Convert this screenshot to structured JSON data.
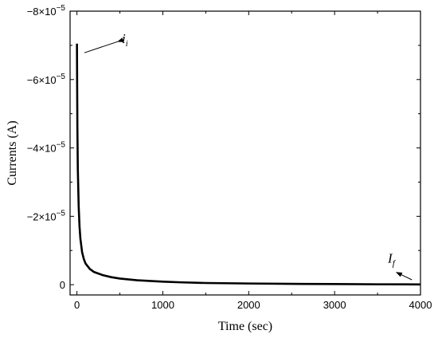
{
  "chart_data": {
    "type": "line",
    "title": "",
    "xlabel": "Time (sec)",
    "ylabel": "Currents (A)",
    "xlim": [
      -80,
      4000
    ],
    "ylim": [
      0.3,
      -8
    ],
    "y_unit_exponent": -5,
    "y_axis_inverted": true,
    "x_ticks": [
      {
        "value": 0,
        "label": "0"
      },
      {
        "value": 1000,
        "label": "1000"
      },
      {
        "value": 2000,
        "label": "2000"
      },
      {
        "value": 3000,
        "label": "3000"
      },
      {
        "value": 4000,
        "label": "4000"
      }
    ],
    "y_ticks": [
      {
        "value": 0,
        "label": "0"
      },
      {
        "value": -2,
        "label": "−2×10",
        "exp": "−5"
      },
      {
        "value": -4,
        "label": "−4×10",
        "exp": "−5"
      },
      {
        "value": -6,
        "label": "−6×10",
        "exp": "−5"
      },
      {
        "value": -8,
        "label": "−8×10",
        "exp": "−5"
      }
    ],
    "series": [
      {
        "color": "#000000",
        "x": [
          0,
          2,
          5,
          10,
          20,
          30,
          40,
          60,
          80,
          100,
          150,
          200,
          300,
          400,
          500,
          700,
          1000,
          1200,
          1500,
          2000,
          2500,
          3000,
          3500,
          4000
        ],
        "y": [
          -7.05,
          -6.0,
          -4.6,
          -3.4,
          -2.3,
          -1.7,
          -1.35,
          -0.95,
          -0.75,
          -0.62,
          -0.46,
          -0.37,
          -0.28,
          -0.22,
          -0.18,
          -0.13,
          -0.09,
          -0.07,
          -0.05,
          -0.035,
          -0.025,
          -0.018,
          -0.012,
          -0.008
        ]
      }
    ],
    "annotations": [
      {
        "text": "i",
        "subscript": "i",
        "x": 550,
        "y": -7.25,
        "arrow_to": [
          20,
          -7.0
        ]
      },
      {
        "text": "I",
        "subscript": "f",
        "x": 3620,
        "y": -0.55,
        "arrow_from": [
          3900,
          -0.05
        ],
        "arrow_to": [
          3720,
          -0.5
        ]
      }
    ],
    "grid": false,
    "legend": "none"
  }
}
